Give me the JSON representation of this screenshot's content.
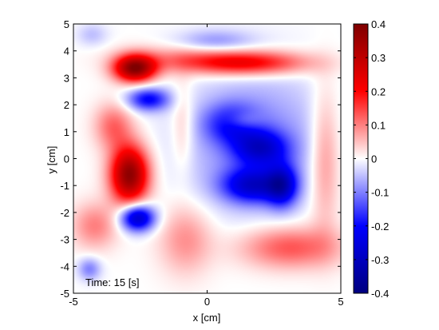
{
  "chart_data": {
    "type": "heatmap",
    "title": "",
    "xlabel": "x [cm]",
    "ylabel": "y [cm]",
    "xlim": [
      -5,
      5
    ],
    "ylim": [
      -5,
      5
    ],
    "x_ticks": [
      -5,
      0,
      5
    ],
    "x_tick_labels": [
      "-5",
      "0",
      "5"
    ],
    "y_ticks": [
      -5,
      -4,
      -3,
      -2,
      -1,
      0,
      1,
      2,
      3,
      4,
      5
    ],
    "y_tick_labels": [
      "-5",
      "-4",
      "-3",
      "-2",
      "-1",
      "0",
      "1",
      "2",
      "3",
      "4",
      "5"
    ],
    "annotation": "Time: 15 [s]",
    "grid": false,
    "colorbar": {
      "position": "right",
      "range": [
        -0.4,
        0.4
      ],
      "ticks": [
        0.4,
        0.3,
        0.2,
        0.1,
        0,
        -0.1,
        -0.2,
        -0.3,
        -0.4
      ],
      "tick_labels": [
        "0.4",
        "0.3",
        "0.2",
        "0.1",
        "0",
        "-0.1",
        "-0.2",
        "-0.3",
        "-0.4"
      ],
      "colormap": [
        "#00007f",
        "#0000ff",
        "#ffffff",
        "#ff0000",
        "#7f0000"
      ]
    },
    "features": [
      {
        "x": -2.7,
        "y": 3.35,
        "value": 0.38,
        "sx": 0.55,
        "sy": 0.35
      },
      {
        "x": 1.5,
        "y": 3.55,
        "value": 0.22,
        "sx": 1.6,
        "sy": 0.32
      },
      {
        "x": -0.8,
        "y": 3.7,
        "value": 0.08,
        "sx": 1.6,
        "sy": 0.35
      },
      {
        "x": -2.9,
        "y": -0.6,
        "value": 0.38,
        "sx": 0.5,
        "sy": 0.75
      },
      {
        "x": -3.5,
        "y": 1.2,
        "value": 0.12,
        "sx": 0.5,
        "sy": 0.6
      },
      {
        "x": -4.2,
        "y": -2.5,
        "value": 0.1,
        "sx": 0.6,
        "sy": 0.6
      },
      {
        "x": -2.6,
        "y": -2.2,
        "value": -0.3,
        "sx": 0.45,
        "sy": 0.35
      },
      {
        "x": -2.2,
        "y": 2.2,
        "value": -0.2,
        "sx": 0.55,
        "sy": 0.3
      },
      {
        "x": 0.3,
        "y": 4.35,
        "value": -0.08,
        "sx": 1.0,
        "sy": 0.3
      },
      {
        "x": 1.8,
        "y": 0.6,
        "value": -0.1,
        "sx": 1.9,
        "sy": 1.8
      },
      {
        "x": 2.0,
        "y": 0.4,
        "value": -0.2,
        "sx": 0.7,
        "sy": 0.45
      },
      {
        "x": 1.7,
        "y": -1.0,
        "value": -0.23,
        "sx": 0.8,
        "sy": 0.45
      },
      {
        "x": 2.8,
        "y": -1.0,
        "value": -0.22,
        "sx": 0.4,
        "sy": 0.55
      },
      {
        "x": 0.9,
        "y": 1.3,
        "value": -0.15,
        "sx": 0.7,
        "sy": 0.5
      },
      {
        "x": 1.3,
        "y": 1.4,
        "value": 0.08,
        "sx": 0.5,
        "sy": 0.25
      },
      {
        "x": 3.1,
        "y": -3.3,
        "value": 0.14,
        "sx": 1.3,
        "sy": 0.55
      },
      {
        "x": -0.8,
        "y": -3.0,
        "value": 0.09,
        "sx": 0.7,
        "sy": 0.9
      },
      {
        "x": -0.9,
        "y": 1.2,
        "value": 0.06,
        "sx": 0.3,
        "sy": 1.2
      },
      {
        "x": 4.4,
        "y": 0.0,
        "value": 0.1,
        "sx": 0.4,
        "sy": 1.8
      },
      {
        "x": -4.4,
        "y": -4.1,
        "value": -0.1,
        "sx": 0.3,
        "sy": 0.3
      },
      {
        "x": -4.3,
        "y": 4.6,
        "value": -0.05,
        "sx": 0.4,
        "sy": 0.3
      }
    ]
  }
}
